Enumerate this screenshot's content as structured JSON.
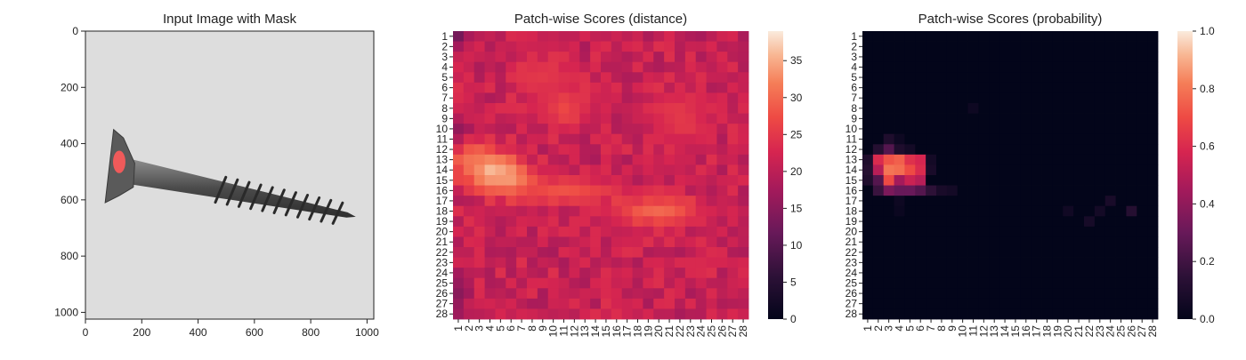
{
  "chart_data": [
    {
      "type": "image",
      "title": "Input Image with Mask",
      "xlim": [
        0,
        1024
      ],
      "ylim": [
        1024,
        0
      ],
      "x_ticks": [
        0,
        200,
        400,
        600,
        800,
        1000
      ],
      "y_ticks": [
        0,
        200,
        400,
        600,
        800,
        1000
      ],
      "subject": "gray screw on light background",
      "mask_color": "#ff5a5a",
      "mask_region": {
        "cx": 120,
        "cy": 465,
        "rx": 22,
        "ry": 40
      },
      "screw": {
        "head_outline": [
          [
            70,
            610
          ],
          [
            100,
            350
          ],
          [
            135,
            380
          ],
          [
            175,
            470
          ],
          [
            170,
            555
          ],
          [
            120,
            585
          ]
        ],
        "shank_start": [
          160,
          500
        ],
        "shank_end": [
          960,
          660
        ],
        "tip": [
          960,
          660
        ]
      }
    },
    {
      "type": "heatmap",
      "title": "Patch-wise Scores (distance)",
      "x_labels": [
        "1",
        "2",
        "3",
        "4",
        "5",
        "6",
        "7",
        "8",
        "9",
        "10",
        "11",
        "12",
        "13",
        "14",
        "15",
        "16",
        "17",
        "18",
        "19",
        "20",
        "21",
        "22",
        "23",
        "24",
        "25",
        "26",
        "27",
        "28"
      ],
      "y_labels": [
        "1",
        "2",
        "3",
        "4",
        "5",
        "6",
        "7",
        "8",
        "9",
        "10",
        "11",
        "12",
        "13",
        "14",
        "15",
        "16",
        "17",
        "18",
        "19",
        "20",
        "21",
        "22",
        "23",
        "24",
        "25",
        "26",
        "27",
        "28"
      ],
      "colorbar": {
        "min": 0,
        "max": 39,
        "ticks": [
          0,
          5,
          10,
          15,
          20,
          25,
          30,
          35
        ]
      },
      "colormap": "rocket",
      "base_value": 21,
      "hotspots": [
        {
          "row": 14,
          "col": 4,
          "value": 37,
          "sigma_r": 1.3,
          "sigma_c": 1.8
        },
        {
          "row": 15,
          "col": 6,
          "value": 35,
          "sigma_r": 1.0,
          "sigma_c": 1.5
        },
        {
          "row": 13,
          "col": 2,
          "value": 31,
          "sigma_r": 1.2,
          "sigma_c": 1.0
        },
        {
          "row": 16,
          "col": 11,
          "value": 28,
          "sigma_r": 0.9,
          "sigma_c": 3.5
        },
        {
          "row": 18,
          "col": 20,
          "value": 30,
          "sigma_r": 1.0,
          "sigma_c": 3.0
        },
        {
          "row": 8,
          "col": 11,
          "value": 27,
          "sigma_r": 1.5,
          "sigma_c": 1.5
        },
        {
          "row": 9,
          "col": 22,
          "value": 25,
          "sigma_r": 2.0,
          "sigma_c": 2.0
        },
        {
          "row": 5,
          "col": 9,
          "value": 25,
          "sigma_r": 1.5,
          "sigma_c": 2.0
        },
        {
          "row": 1,
          "col": 1,
          "value": 13,
          "sigma_r": 0.9,
          "sigma_c": 0.7
        },
        {
          "row": 26,
          "col": 1,
          "value": 15,
          "sigma_r": 1.5,
          "sigma_c": 0.7
        },
        {
          "row": 10,
          "col": 1,
          "value": 16,
          "sigma_r": 1.0,
          "sigma_c": 0.7
        }
      ]
    },
    {
      "type": "heatmap",
      "title": "Patch-wise Scores (probability)",
      "x_labels": [
        "1",
        "2",
        "3",
        "4",
        "5",
        "6",
        "7",
        "8",
        "9",
        "10",
        "11",
        "12",
        "13",
        "14",
        "15",
        "16",
        "17",
        "18",
        "19",
        "20",
        "21",
        "22",
        "23",
        "24",
        "25",
        "26",
        "27",
        "28"
      ],
      "y_labels": [
        "1",
        "2",
        "3",
        "4",
        "5",
        "6",
        "7",
        "8",
        "9",
        "10",
        "11",
        "12",
        "13",
        "14",
        "15",
        "16",
        "17",
        "18",
        "19",
        "20",
        "21",
        "22",
        "23",
        "24",
        "25",
        "26",
        "27",
        "28"
      ],
      "colorbar": {
        "min": 0.0,
        "max": 1.0,
        "ticks": [
          0.0,
          0.2,
          0.4,
          0.6,
          0.8,
          1.0
        ]
      },
      "colorbar_tick_labels": [
        "0.0",
        "0.2",
        "0.4",
        "0.6",
        "0.8",
        "1.0"
      ],
      "colormap": "rocket",
      "cells": [
        {
          "row": 13,
          "col": 2,
          "value": 0.6
        },
        {
          "row": 13,
          "col": 3,
          "value": 0.72
        },
        {
          "row": 13,
          "col": 4,
          "value": 0.75
        },
        {
          "row": 13,
          "col": 5,
          "value": 0.62
        },
        {
          "row": 13,
          "col": 6,
          "value": 0.58
        },
        {
          "row": 14,
          "col": 2,
          "value": 0.5
        },
        {
          "row": 14,
          "col": 3,
          "value": 0.8
        },
        {
          "row": 14,
          "col": 4,
          "value": 0.78
        },
        {
          "row": 14,
          "col": 5,
          "value": 0.7
        },
        {
          "row": 14,
          "col": 6,
          "value": 0.6
        },
        {
          "row": 15,
          "col": 2,
          "value": 0.25
        },
        {
          "row": 15,
          "col": 3,
          "value": 0.7
        },
        {
          "row": 15,
          "col": 4,
          "value": 0.45
        },
        {
          "row": 15,
          "col": 5,
          "value": 0.55
        },
        {
          "row": 15,
          "col": 6,
          "value": 0.5
        },
        {
          "row": 16,
          "col": 2,
          "value": 0.18
        },
        {
          "row": 16,
          "col": 3,
          "value": 0.35
        },
        {
          "row": 16,
          "col": 4,
          "value": 0.3
        },
        {
          "row": 16,
          "col": 5,
          "value": 0.3
        },
        {
          "row": 16,
          "col": 6,
          "value": 0.25
        },
        {
          "row": 16,
          "col": 7,
          "value": 0.15
        },
        {
          "row": 16,
          "col": 8,
          "value": 0.08
        },
        {
          "row": 16,
          "col": 9,
          "value": 0.06
        },
        {
          "row": 12,
          "col": 2,
          "value": 0.12
        },
        {
          "row": 12,
          "col": 3,
          "value": 0.25
        },
        {
          "row": 12,
          "col": 4,
          "value": 0.1
        },
        {
          "row": 12,
          "col": 5,
          "value": 0.06
        },
        {
          "row": 11,
          "col": 3,
          "value": 0.1
        },
        {
          "row": 11,
          "col": 4,
          "value": 0.04
        },
        {
          "row": 13,
          "col": 1,
          "value": 0.1
        },
        {
          "row": 14,
          "col": 1,
          "value": 0.12
        },
        {
          "row": 15,
          "col": 1,
          "value": 0.1
        },
        {
          "row": 14,
          "col": 7,
          "value": 0.08
        },
        {
          "row": 13,
          "col": 7,
          "value": 0.06
        },
        {
          "row": 17,
          "col": 4,
          "value": 0.04
        },
        {
          "row": 17,
          "col": 24,
          "value": 0.08
        },
        {
          "row": 18,
          "col": 26,
          "value": 0.12
        },
        {
          "row": 18,
          "col": 23,
          "value": 0.06
        },
        {
          "row": 19,
          "col": 22,
          "value": 0.07
        },
        {
          "row": 18,
          "col": 20,
          "value": 0.05
        },
        {
          "row": 8,
          "col": 11,
          "value": 0.04
        },
        {
          "row": 18,
          "col": 4,
          "value": 0.03
        }
      ]
    }
  ]
}
